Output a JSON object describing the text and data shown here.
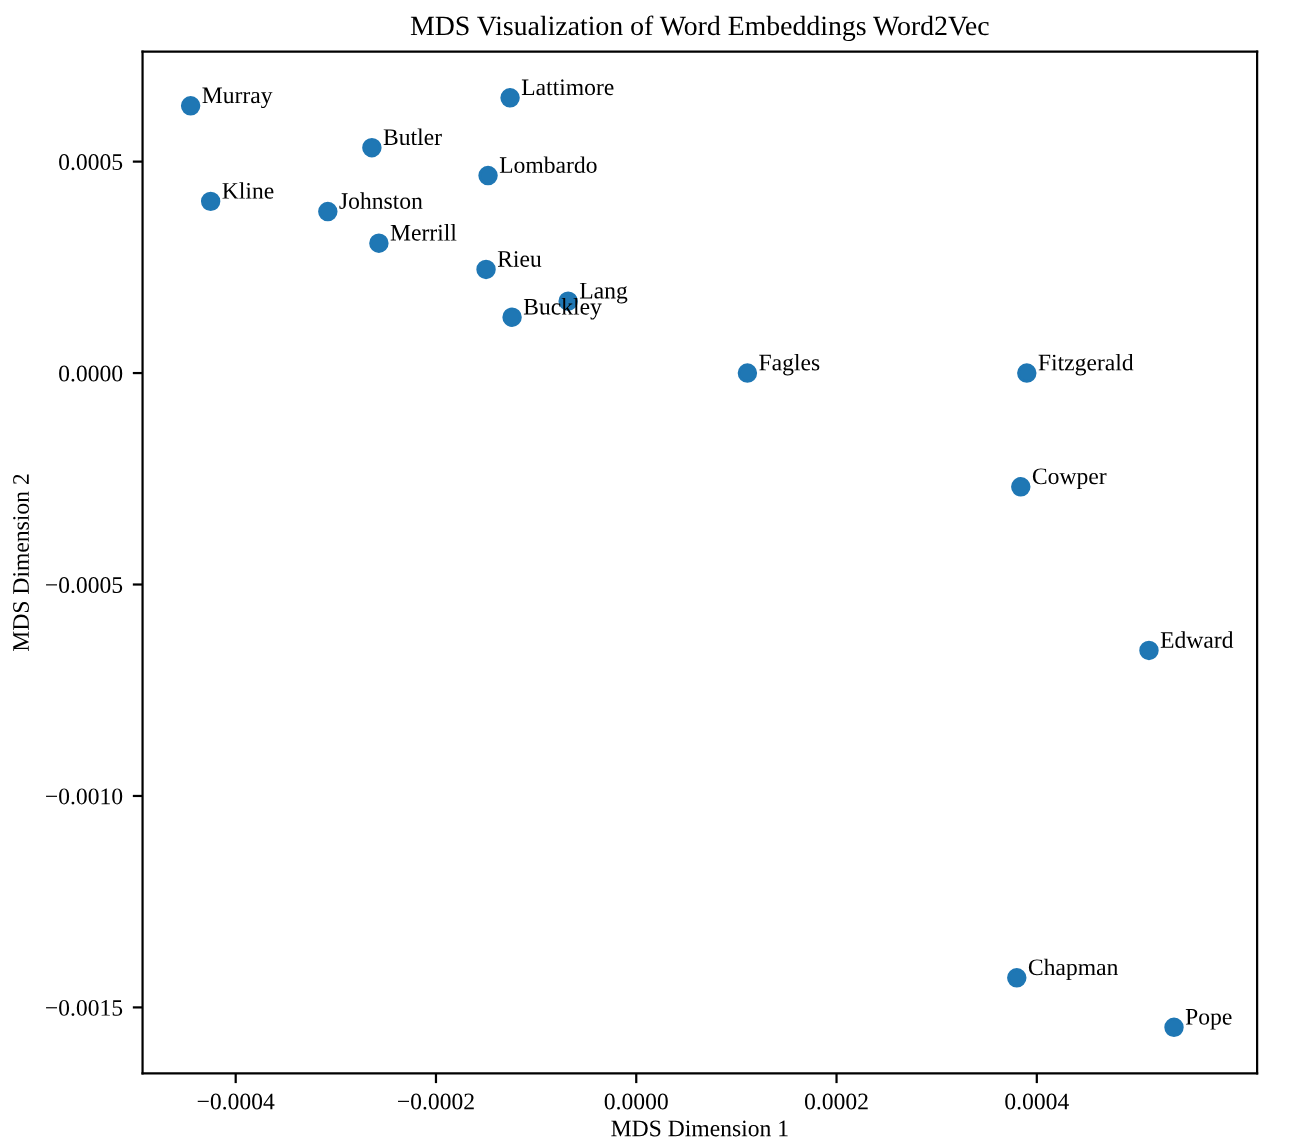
{
  "chart_data": {
    "type": "scatter",
    "title": "MDS Visualization of Word Embeddings Word2Vec",
    "xlabel": "MDS Dimension 1",
    "ylabel": "MDS Dimension 2",
    "x": [
      -0.000445,
      -0.000126,
      -0.000264,
      -0.000148,
      -0.000425,
      -0.000308,
      -0.000257,
      -0.00015,
      -6.8e-05,
      -0.000124,
      0.000111,
      0.00039,
      0.000384,
      0.000512,
      0.00038,
      0.000537
    ],
    "series": [
      {
        "color": "#1f77b4",
        "values": [
          0.000632,
          0.000651,
          0.000533,
          0.000467,
          0.000406,
          0.000382,
          0.000307,
          0.000245,
          0.00017,
          0.000132,
          0.0,
          0.0,
          -0.000269,
          -0.000656,
          -0.00143,
          -0.001547
        ]
      }
    ],
    "annotations": [
      {
        "text": "Murray",
        "x": -0.000445,
        "y": 0.000632
      },
      {
        "text": "Lattimore",
        "x": -0.000126,
        "y": 0.000651
      },
      {
        "text": "Butler",
        "x": -0.000264,
        "y": 0.000533
      },
      {
        "text": "Lombardo",
        "x": -0.000148,
        "y": 0.000467
      },
      {
        "text": "Kline",
        "x": -0.000425,
        "y": 0.000406
      },
      {
        "text": "Johnston",
        "x": -0.000308,
        "y": 0.000382
      },
      {
        "text": "Merrill",
        "x": -0.000257,
        "y": 0.000307
      },
      {
        "text": "Rieu",
        "x": -0.00015,
        "y": 0.000245
      },
      {
        "text": "Lang",
        "x": -6.8e-05,
        "y": 0.00017
      },
      {
        "text": "Buckley",
        "x": -0.000124,
        "y": 0.000132
      },
      {
        "text": "Fagles",
        "x": 0.000111,
        "y": 0.0
      },
      {
        "text": "Fitzgerald",
        "x": 0.00039,
        "y": 0.0
      },
      {
        "text": "Cowper",
        "x": 0.000384,
        "y": -0.000269
      },
      {
        "text": "Edward",
        "x": 0.000512,
        "y": -0.000656
      },
      {
        "text": "Chapman",
        "x": 0.00038,
        "y": -0.00143
      },
      {
        "text": "Pope",
        "x": 0.000537,
        "y": -0.001547
      }
    ],
    "xlim": [
      -0.000493,
      0.00062
    ],
    "ylim": [
      -0.001656,
      0.00076
    ],
    "xticks": [
      {
        "value": -0.0004,
        "label": "−0.0004"
      },
      {
        "value": -0.0002,
        "label": "−0.0002"
      },
      {
        "value": 0.0,
        "label": "0.0000"
      },
      {
        "value": 0.0002,
        "label": "0.0002"
      },
      {
        "value": 0.0004,
        "label": "0.0004"
      }
    ],
    "yticks": [
      {
        "value": 0.0005,
        "label": "0.0005"
      },
      {
        "value": 0.0,
        "label": "0.0000"
      },
      {
        "value": -0.0005,
        "label": "−0.0005"
      },
      {
        "value": -0.001,
        "label": "−0.0010"
      },
      {
        "value": -0.0015,
        "label": "−0.0015"
      }
    ],
    "marker": "circle",
    "grid": false
  }
}
